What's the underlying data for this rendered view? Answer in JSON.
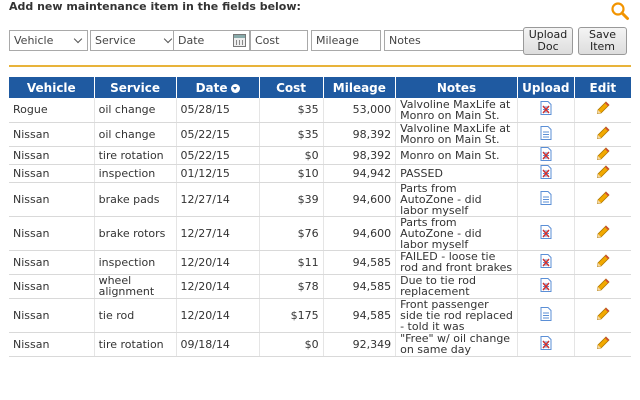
{
  "header": {
    "title": "Add new maintenance item in the fields below:",
    "search_icon": "search-icon"
  },
  "form": {
    "vehicle": "Vehicle",
    "service": "Service",
    "date_placeholder": "Date",
    "cost_placeholder": "Cost",
    "mileage_placeholder": "Mileage",
    "notes_placeholder": "Notes",
    "upload_label_1": "Upload",
    "upload_label_2": "Doc",
    "save_label_1": "Save",
    "save_label_2": "Item"
  },
  "colors": {
    "header_bg": "#1f5aa1",
    "accent": "#e8b33a",
    "pencil": "#f2a900",
    "doc": "#5b8fd6"
  },
  "table": {
    "columns": [
      "Vehicle",
      "Service",
      "Date",
      "Cost",
      "Mileage",
      "Notes",
      "Upload",
      "Edit"
    ],
    "rows": [
      {
        "vehicle": "Rogue",
        "service": "oil change",
        "date": "05/28/15",
        "cost": "$35",
        "mileage": "53,000",
        "notes": "Valvoline MaxLife at Monro on Main St.",
        "upload": "doc-deleted-icon"
      },
      {
        "vehicle": "Nissan",
        "service": "oil change",
        "date": "05/22/15",
        "cost": "$35",
        "mileage": "98,392",
        "notes": "Valvoline MaxLife at Monro on Main St.",
        "upload": "doc-icon"
      },
      {
        "vehicle": "Nissan",
        "service": "tire rotation",
        "date": "05/22/15",
        "cost": "$0",
        "mileage": "98,392",
        "notes": "Monro on Main St.",
        "upload": "doc-deleted-icon"
      },
      {
        "vehicle": "Nissan",
        "service": "inspection",
        "date": "01/12/15",
        "cost": "$10",
        "mileage": "94,942",
        "notes": "PASSED",
        "upload": "doc-deleted-icon"
      },
      {
        "vehicle": "Nissan",
        "service": "brake pads",
        "date": "12/27/14",
        "cost": "$39",
        "mileage": "94,600",
        "notes": "Parts from AutoZone - did labor myself",
        "upload": "doc-icon"
      },
      {
        "vehicle": "Nissan",
        "service": "brake rotors",
        "date": "12/27/14",
        "cost": "$76",
        "mileage": "94,600",
        "notes": "Parts from AutoZone - did labor myself",
        "upload": "doc-deleted-icon"
      },
      {
        "vehicle": "Nissan",
        "service": "inspection",
        "date": "12/20/14",
        "cost": "$11",
        "mileage": "94,585",
        "notes": "FAILED - loose tie rod and front brakes",
        "upload": "doc-deleted-icon"
      },
      {
        "vehicle": "Nissan",
        "service": "wheel alignment",
        "date": "12/20/14",
        "cost": "$78",
        "mileage": "94,585",
        "notes": "Due to tie rod replacement",
        "upload": "doc-deleted-icon"
      },
      {
        "vehicle": "Nissan",
        "service": "tie rod",
        "date": "12/20/14",
        "cost": "$175",
        "mileage": "94,585",
        "notes": "Front passenger side tie rod replaced - told it was",
        "upload": "doc-icon"
      },
      {
        "vehicle": "Nissan",
        "service": "tire rotation",
        "date": "09/18/14",
        "cost": "$0",
        "mileage": "92,349",
        "notes": "\"Free\" w/ oil change on same day",
        "upload": "doc-deleted-icon"
      }
    ]
  }
}
